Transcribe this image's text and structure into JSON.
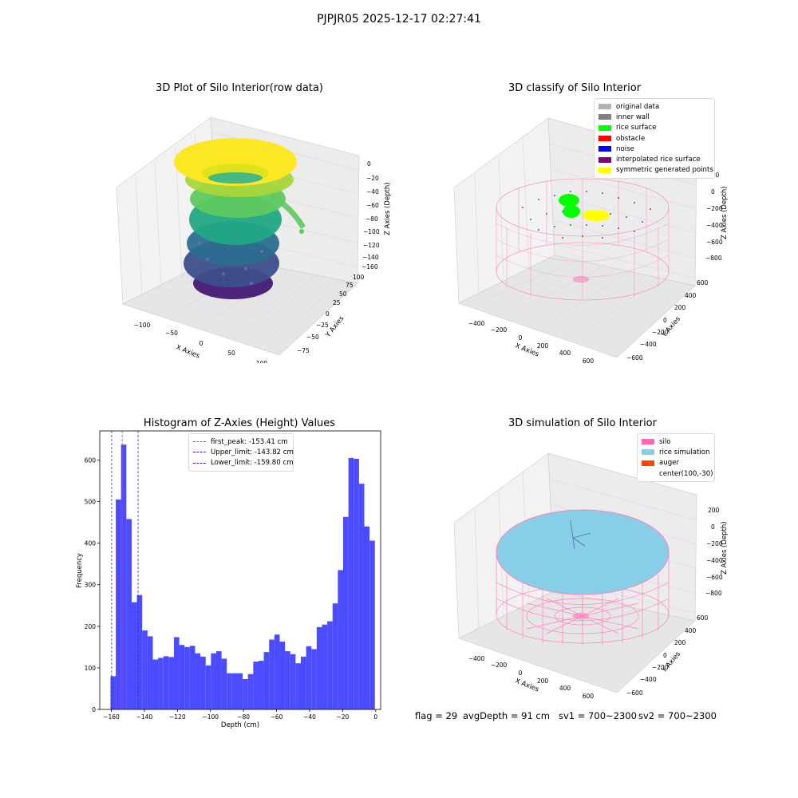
{
  "suptitle": "PJPJR05 2025-12-17 02:27:41",
  "colors": {
    "histogram_bar": "#4b4bff",
    "peak_line": "#ff2a2a",
    "limit_line": "#2a2acc",
    "silo_mesh": "#ff80c0",
    "rice_fill": "#87cfe6",
    "yellow": "#f5f22a",
    "green": "#00ff00"
  },
  "panels": {
    "raw": {
      "title": "3D Plot of Silo Interior(row data)",
      "x_label": "X Axies",
      "y_label": "Y Axies",
      "z_label": "Z Axies (Depth)",
      "x_ticks": [
        "−100",
        "−50",
        "0",
        "50",
        "100"
      ],
      "y_ticks": [
        "−75",
        "−50",
        "−25",
        "0",
        "25",
        "50",
        "75",
        "100"
      ],
      "z_ticks": [
        "0",
        "−20",
        "−40",
        "−60",
        "−80",
        "−100",
        "−120",
        "−140",
        "−160"
      ]
    },
    "classify": {
      "title": "3D classify of Silo Interior",
      "x_label": "X Axies",
      "y_label": "Y Axies",
      "z_label": "Z Axies (Depth)",
      "x_ticks": [
        "−400",
        "−200",
        "0",
        "200",
        "400",
        "600"
      ],
      "y_ticks": [
        "−600",
        "−400",
        "−200",
        "0",
        "200",
        "400",
        "600"
      ],
      "z_ticks": [
        "200",
        "0",
        "−200",
        "−400",
        "−600",
        "−800"
      ],
      "legend": [
        {
          "label": "original data",
          "color": "#b3b3b3"
        },
        {
          "label": "inner wall",
          "color": "#808080"
        },
        {
          "label": "rice surface",
          "color": "#00ff00"
        },
        {
          "label": "obstacle",
          "color": "#ff0000"
        },
        {
          "label": "noise",
          "color": "#0000ff"
        },
        {
          "label": "interpolated rice surface",
          "color": "#800080"
        },
        {
          "label": "symmetric generated points",
          "color": "#ffff00"
        }
      ]
    },
    "simulation": {
      "title": "3D simulation of Silo Interior",
      "x_label": "X Axies",
      "y_label": "Y Axies",
      "z_label": "Z Axies (Depth)",
      "x_ticks": [
        "−400",
        "−200",
        "0",
        "200",
        "400",
        "600"
      ],
      "y_ticks": [
        "−600",
        "−400",
        "−200",
        "0",
        "200",
        "400",
        "600"
      ],
      "z_ticks": [
        "200",
        "0",
        "−200",
        "−400",
        "−600",
        "−800"
      ],
      "legend": [
        {
          "label": "silo",
          "color": "#ff69b4"
        },
        {
          "label": "rice simulation",
          "color": "#87ceeb"
        },
        {
          "label": "auger",
          "color": "#ff4500"
        },
        {
          "label": "center(100,-30)",
          "color": ""
        }
      ]
    }
  },
  "footer": {
    "flag": "flag = 29",
    "avg_depth": "avgDepth = 91 cm",
    "sv1": "sv1 = 700~2300",
    "sv2": "sv2 = 700~2300"
  },
  "chart_data": [
    {
      "type": "scatter",
      "title": "3D Plot of Silo Interior(row data)",
      "xlabel": "X Axies",
      "ylabel": "Y Axies",
      "zlabel": "Z Axies (Depth)",
      "xlim": [
        -130,
        110
      ],
      "ylim": [
        -85,
        110
      ],
      "zlim": [
        -170,
        5
      ]
    },
    {
      "type": "scatter",
      "title": "3D classify of Silo Interior",
      "xlabel": "X Axies",
      "ylabel": "Y Axies",
      "zlabel": "Z Axies (Depth)",
      "xlim": [
        -500,
        700
      ],
      "ylim": [
        -650,
        650
      ],
      "zlim": [
        -900,
        300
      ],
      "legend_position": "top-right"
    },
    {
      "type": "bar",
      "title": "Histogram of Z-Axies (Height) Values",
      "xlabel": "Depth (cm)",
      "ylabel": "Frequency",
      "xlim": [
        -167,
        3
      ],
      "ylim": [
        0,
        670
      ],
      "x_ticks": [
        -160,
        -140,
        -120,
        -100,
        -80,
        -60,
        -40,
        -20,
        0
      ],
      "y_ticks": [
        0,
        100,
        200,
        300,
        400,
        500,
        600
      ],
      "bin_start": -160.5,
      "bin_width": 3.2,
      "values": [
        80,
        505,
        637,
        458,
        258,
        275,
        190,
        176,
        120,
        124,
        128,
        126,
        174,
        155,
        150,
        153,
        135,
        127,
        106,
        135,
        140,
        122,
        87,
        87,
        87,
        73,
        85,
        115,
        117,
        138,
        168,
        180,
        163,
        140,
        133,
        111,
        127,
        152,
        145,
        198,
        204,
        212,
        255,
        335,
        463,
        605,
        603,
        543,
        440,
        406
      ],
      "vlines": [
        {
          "label": "first_peak: -153.41 cm",
          "x": -153.41,
          "color": "#ff2a2a"
        },
        {
          "label": "Upper_limit: -143.82 cm",
          "x": -143.82,
          "color": "#2a2acc"
        },
        {
          "label": "Lower_limit: -159.80 cm",
          "x": -159.8,
          "color": "#2a2acc"
        }
      ],
      "legend_position": "upper center"
    },
    {
      "type": "area",
      "title": "3D simulation of Silo Interior",
      "xlabel": "X Axies",
      "ylabel": "Y Axies",
      "zlabel": "Z Axies (Depth)",
      "xlim": [
        -500,
        700
      ],
      "ylim": [
        -650,
        650
      ],
      "zlim": [
        -900,
        300
      ],
      "legend_position": "top-right"
    }
  ]
}
